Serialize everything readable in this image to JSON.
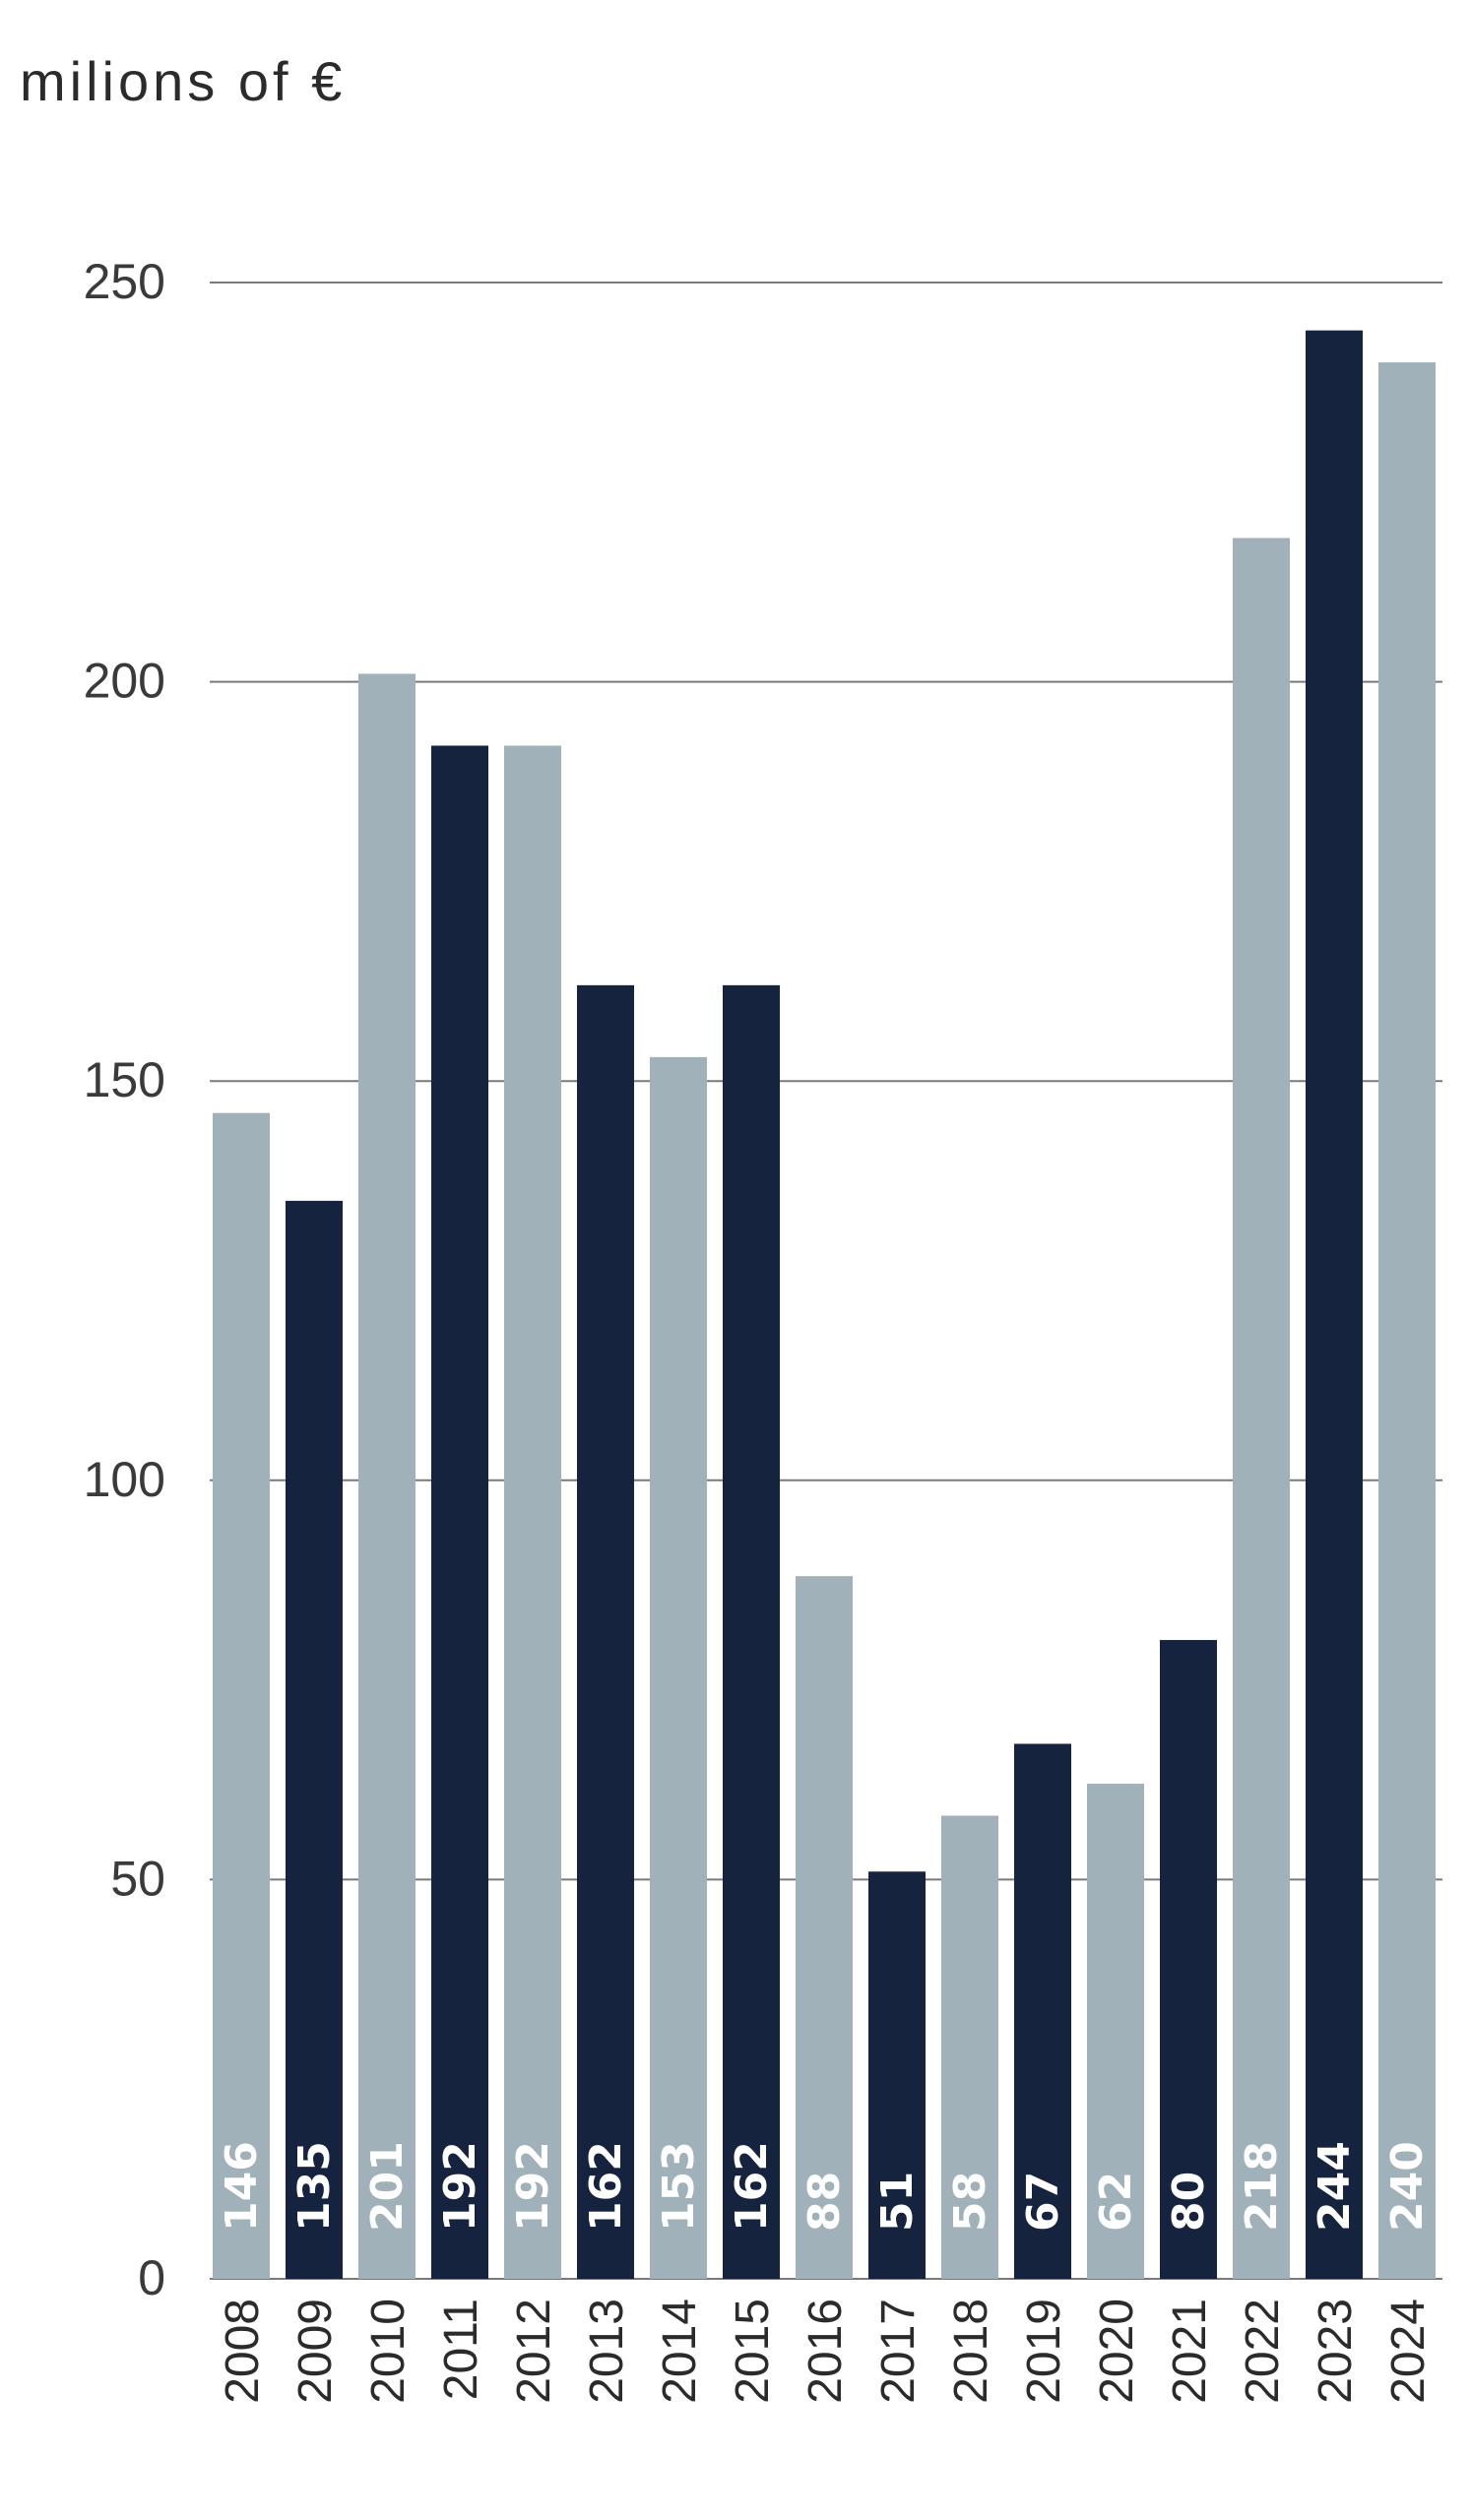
{
  "chart_data": {
    "type": "bar",
    "unit_label": "milions of €",
    "categories": [
      "2008",
      "2009",
      "2010",
      "2011",
      "2012",
      "2013",
      "2014",
      "2015",
      "2016",
      "2017",
      "2018",
      "2019",
      "2020",
      "2021",
      "2022",
      "2023",
      "2024"
    ],
    "values": [
      146,
      135,
      201,
      192,
      192,
      162,
      153,
      162,
      88,
      51,
      58,
      67,
      62,
      80,
      218,
      244,
      240
    ],
    "ylim": [
      0,
      250
    ],
    "yticks": [
      0,
      50,
      100,
      150,
      200,
      250
    ],
    "grid": true,
    "colors": {
      "light_bar": "#a0b1b9",
      "dark_bar": "#15233e",
      "gridline": "#7a7a7a",
      "value_label": "#ffffff"
    }
  }
}
